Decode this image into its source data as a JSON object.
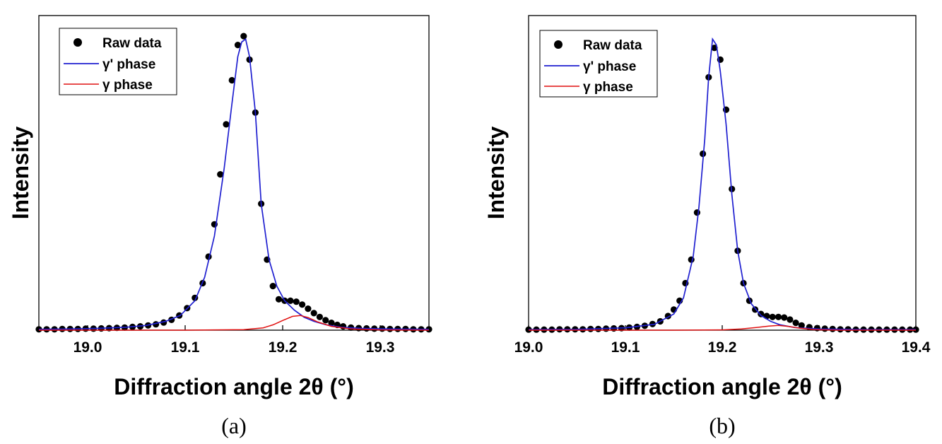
{
  "chart_data": [
    {
      "type": "scatter",
      "panel_label": "(a)",
      "xlabel": "Diffraction angle 2θ (°)",
      "ylabel": "Intensity",
      "xlim": [
        18.95,
        19.35
      ],
      "ylim": [
        0,
        1.07
      ],
      "x_ticks": [
        "19.0",
        "19.1",
        "19.2",
        "19.3"
      ],
      "x_tick_values": [
        19.0,
        19.1,
        19.2,
        19.3
      ],
      "legend": {
        "position": "top-left",
        "entries": [
          "Raw data",
          "γ' phase",
          "γ phase"
        ]
      },
      "colors": {
        "raw": "#000000",
        "gamma_prime": "#1f1fd0",
        "gamma": "#e01010"
      },
      "series": [
        {
          "name": "Raw data",
          "kind": "points",
          "x": [
            18.95,
            18.958,
            18.966,
            18.974,
            18.982,
            18.99,
            18.998,
            19.006,
            19.014,
            19.022,
            19.03,
            19.038,
            19.046,
            19.054,
            19.062,
            19.07,
            19.078,
            19.086,
            19.094,
            19.102,
            19.11,
            19.118,
            19.124,
            19.13,
            19.136,
            19.142,
            19.148,
            19.154,
            19.16,
            19.166,
            19.172,
            19.178,
            19.184,
            19.19,
            19.196,
            19.202,
            19.208,
            19.214,
            19.22,
            19.226,
            19.232,
            19.238,
            19.244,
            19.25,
            19.256,
            19.262,
            19.27,
            19.278,
            19.286,
            19.294,
            19.302,
            19.31,
            19.318,
            19.326,
            19.334,
            19.342,
            19.35
          ],
          "y": [
            0.003,
            0.003,
            0.003,
            0.004,
            0.004,
            0.004,
            0.005,
            0.005,
            0.006,
            0.007,
            0.008,
            0.009,
            0.011,
            0.013,
            0.016,
            0.02,
            0.026,
            0.035,
            0.05,
            0.075,
            0.11,
            0.16,
            0.25,
            0.36,
            0.53,
            0.7,
            0.85,
            0.97,
            1.0,
            0.92,
            0.74,
            0.43,
            0.24,
            0.15,
            0.105,
            0.1,
            0.1,
            0.097,
            0.087,
            0.073,
            0.058,
            0.045,
            0.034,
            0.025,
            0.018,
            0.013,
            0.009,
            0.007,
            0.006,
            0.005,
            0.005,
            0.004,
            0.004,
            0.004,
            0.003,
            0.003,
            0.003
          ]
        },
        {
          "name": "γ' phase",
          "kind": "line",
          "x": [
            18.95,
            18.98,
            19.01,
            19.04,
            19.06,
            19.08,
            19.095,
            19.11,
            19.12,
            19.13,
            19.14,
            19.148,
            19.154,
            19.158,
            19.162,
            19.166,
            19.172,
            19.178,
            19.186,
            19.194,
            19.202,
            19.212,
            19.222,
            19.232,
            19.245,
            19.26,
            19.28,
            19.31,
            19.35
          ],
          "y": [
            0.003,
            0.004,
            0.006,
            0.01,
            0.016,
            0.03,
            0.05,
            0.1,
            0.18,
            0.32,
            0.55,
            0.77,
            0.93,
            0.98,
            0.99,
            0.93,
            0.74,
            0.43,
            0.24,
            0.15,
            0.1,
            0.068,
            0.044,
            0.03,
            0.018,
            0.01,
            0.006,
            0.004,
            0.003
          ]
        },
        {
          "name": "γ phase",
          "kind": "line",
          "x": [
            18.95,
            19.1,
            19.16,
            19.18,
            19.19,
            19.2,
            19.21,
            19.218,
            19.226,
            19.236,
            19.25,
            19.27,
            19.3,
            19.35
          ],
          "y": [
            0.0,
            0.0,
            0.002,
            0.008,
            0.018,
            0.033,
            0.047,
            0.05,
            0.043,
            0.028,
            0.013,
            0.004,
            0.001,
            0.0
          ]
        }
      ]
    },
    {
      "type": "scatter",
      "panel_label": "(b)",
      "xlabel": "Diffraction angle 2θ (°)",
      "ylabel": "Intensity",
      "xlim": [
        19.0,
        19.4
      ],
      "ylim": [
        0,
        1.07
      ],
      "x_ticks": [
        "19.0",
        "19.1",
        "19.2",
        "19.3",
        "19.4"
      ],
      "x_tick_values": [
        19.0,
        19.1,
        19.2,
        19.3,
        19.4
      ],
      "legend": {
        "position": "top-left",
        "entries": [
          "Raw data",
          "γ' phase",
          "γ phase"
        ]
      },
      "colors": {
        "raw": "#000000",
        "gamma_prime": "#1f1fd0",
        "gamma": "#e01010"
      },
      "series": [
        {
          "name": "Raw data",
          "kind": "points",
          "x": [
            19.0,
            19.008,
            19.016,
            19.024,
            19.032,
            19.04,
            19.048,
            19.056,
            19.064,
            19.072,
            19.08,
            19.088,
            19.096,
            19.104,
            19.112,
            19.12,
            19.128,
            19.136,
            19.144,
            19.15,
            19.156,
            19.162,
            19.168,
            19.174,
            19.18,
            19.186,
            19.192,
            19.198,
            19.204,
            19.21,
            19.216,
            19.222,
            19.228,
            19.234,
            19.24,
            19.246,
            19.252,
            19.258,
            19.264,
            19.27,
            19.276,
            19.282,
            19.29,
            19.298,
            19.306,
            19.314,
            19.322,
            19.33,
            19.338,
            19.346,
            19.354,
            19.362,
            19.37,
            19.378,
            19.386,
            19.394,
            19.4
          ],
          "y": [
            0.002,
            0.002,
            0.002,
            0.002,
            0.003,
            0.003,
            0.003,
            0.003,
            0.004,
            0.004,
            0.005,
            0.006,
            0.007,
            0.009,
            0.011,
            0.015,
            0.021,
            0.03,
            0.048,
            0.07,
            0.1,
            0.16,
            0.24,
            0.4,
            0.6,
            0.86,
            0.96,
            0.92,
            0.75,
            0.48,
            0.27,
            0.16,
            0.1,
            0.07,
            0.055,
            0.048,
            0.045,
            0.045,
            0.043,
            0.036,
            0.025,
            0.016,
            0.01,
            0.007,
            0.005,
            0.004,
            0.003,
            0.003,
            0.002,
            0.002,
            0.002,
            0.002,
            0.002,
            0.002,
            0.002,
            0.002,
            0.002
          ]
        },
        {
          "name": "γ' phase",
          "kind": "line",
          "x": [
            19.0,
            19.05,
            19.1,
            19.13,
            19.15,
            19.16,
            19.17,
            19.176,
            19.182,
            19.186,
            19.19,
            19.194,
            19.198,
            19.204,
            19.21,
            19.216,
            19.222,
            19.23,
            19.24,
            19.25,
            19.26,
            19.275,
            19.3,
            19.35,
            19.4
          ],
          "y": [
            0.002,
            0.003,
            0.008,
            0.02,
            0.055,
            0.11,
            0.25,
            0.42,
            0.65,
            0.86,
            0.99,
            0.97,
            0.88,
            0.7,
            0.46,
            0.27,
            0.16,
            0.09,
            0.05,
            0.03,
            0.018,
            0.009,
            0.004,
            0.002,
            0.002
          ]
        },
        {
          "name": "γ phase",
          "kind": "line",
          "x": [
            19.0,
            19.15,
            19.2,
            19.22,
            19.235,
            19.248,
            19.258,
            19.268,
            19.28,
            19.295,
            19.32,
            19.4
          ],
          "y": [
            0.0,
            0.0,
            0.001,
            0.004,
            0.009,
            0.014,
            0.016,
            0.013,
            0.007,
            0.002,
            0.0,
            0.0
          ]
        }
      ]
    }
  ]
}
